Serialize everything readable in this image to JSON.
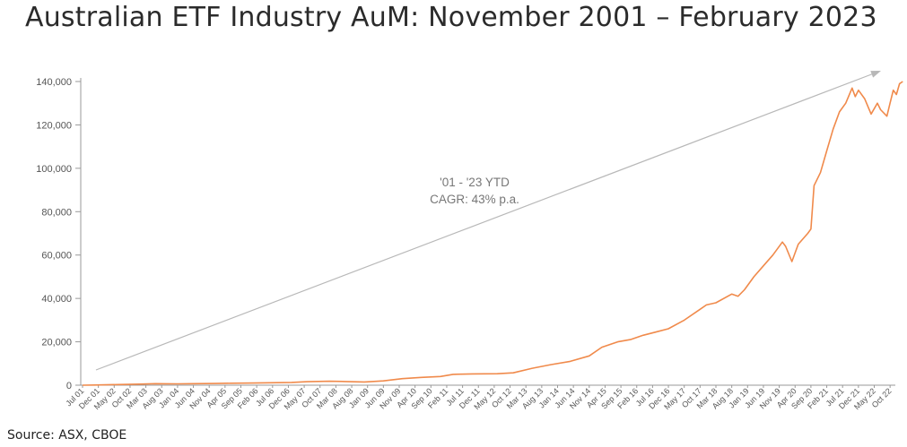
{
  "title": "Australian ETF Industry AuM: November 2001 – February 2023",
  "source": "Source: ASX, CBOE",
  "colors": {
    "line": "#f08a4b",
    "arrow": "#b8b8b8",
    "axis": "#999999"
  },
  "chart_data": {
    "type": "line",
    "title": "Australian ETF Industry AuM: November 2001 – February 2023",
    "xlabel": "",
    "ylabel": "",
    "ylim": [
      0,
      140000
    ],
    "yticks": [
      "0",
      "20,000",
      "40,000",
      "60,000",
      "80,000",
      "100,000",
      "120,000",
      "140,000"
    ],
    "grid": false,
    "xtick_labels": [
      "Jul 01",
      "Dec 01",
      "May 02",
      "Oct 02",
      "Mar 03",
      "Aug 03",
      "Jan 04",
      "Jun 04",
      "Nov 04",
      "Apr 05",
      "Sep 05",
      "Feb 06",
      "Jul 06",
      "Dec 06",
      "May 07",
      "Oct 07",
      "Mar 08",
      "Aug 08",
      "Jan 09",
      "Jun 09",
      "Nov 09",
      "Apr 10",
      "Sep 10",
      "Feb 11",
      "Jul 11",
      "Dec 11",
      "May 12",
      "Oct 12",
      "Mar 13",
      "Aug 13",
      "Jan 14",
      "Jun 14",
      "Nov 14",
      "Apr 15",
      "Sep 15",
      "Feb 16",
      "Jul 16",
      "Dec 16",
      "May 17",
      "Oct 17",
      "Mar 18",
      "Aug 18",
      "Jan 19",
      "Jun 19",
      "Nov 19",
      "Apr 20",
      "Sep 20",
      "Feb 21",
      "Jul 21",
      "Dec 21",
      "May 22",
      "Oct 22"
    ],
    "annotation": {
      "line1": "'01 - '23 YTD",
      "line2": "CAGR: 43% p.a."
    },
    "series": [
      {
        "x": [
          "Jul 01",
          "Nov 01",
          "Jun 02",
          "Jan 03",
          "Jun 03",
          "Jan 04",
          "Jun 04",
          "Jan 05",
          "Jun 05",
          "Jan 06",
          "Jun 06",
          "Jan 07",
          "Jun 07",
          "Jan 08",
          "Jun 08",
          "Dec 08",
          "Jun 09",
          "Dec 09",
          "Jun 10",
          "Dec 10",
          "Apr 11",
          "Oct 11",
          "Jun 12",
          "Nov 12",
          "May 13",
          "Nov 13",
          "May 14",
          "Nov 14",
          "Mar 15",
          "Aug 15",
          "Dec 15",
          "Apr 16",
          "Aug 16",
          "Dec 16",
          "May 17",
          "Oct 17",
          "Dec 17",
          "Mar 18",
          "Aug 18",
          "Oct 18",
          "Dec 18",
          "Mar 19",
          "Jun 19",
          "Sep 19",
          "Dec 19",
          "Jan 20",
          "Mar 20",
          "May 20",
          "Aug 20",
          "Sep 20",
          "Oct 20",
          "Dec 20",
          "Feb 21",
          "Apr 21",
          "Jun 21",
          "Aug 21",
          "Oct 21",
          "Nov 21",
          "Dec 21",
          "Feb 22",
          "Apr 22",
          "Jun 22",
          "Jul 22",
          "Sep 22",
          "Oct 22",
          "Nov 22",
          "Dec 22",
          "Jan 23",
          "Feb 23"
        ],
        "values": [
          0,
          100,
          300,
          500,
          700,
          600,
          700,
          800,
          900,
          1000,
          1100,
          1300,
          1600,
          1800,
          1700,
          1500,
          2000,
          3000,
          3600,
          4000,
          5000,
          5200,
          5300,
          5700,
          7800,
          9500,
          11000,
          13500,
          17500,
          20000,
          21000,
          23000,
          24500,
          26000,
          30000,
          35000,
          37000,
          38000,
          42000,
          41000,
          44000,
          50000,
          55000,
          60000,
          66000,
          64000,
          57000,
          65000,
          70000,
          72000,
          92000,
          98000,
          108000,
          118000,
          126000,
          130000,
          137000,
          133000,
          136000,
          132000,
          125000,
          130000,
          127000,
          124000,
          130000,
          136000,
          134000,
          139000,
          140000
        ]
      }
    ]
  }
}
